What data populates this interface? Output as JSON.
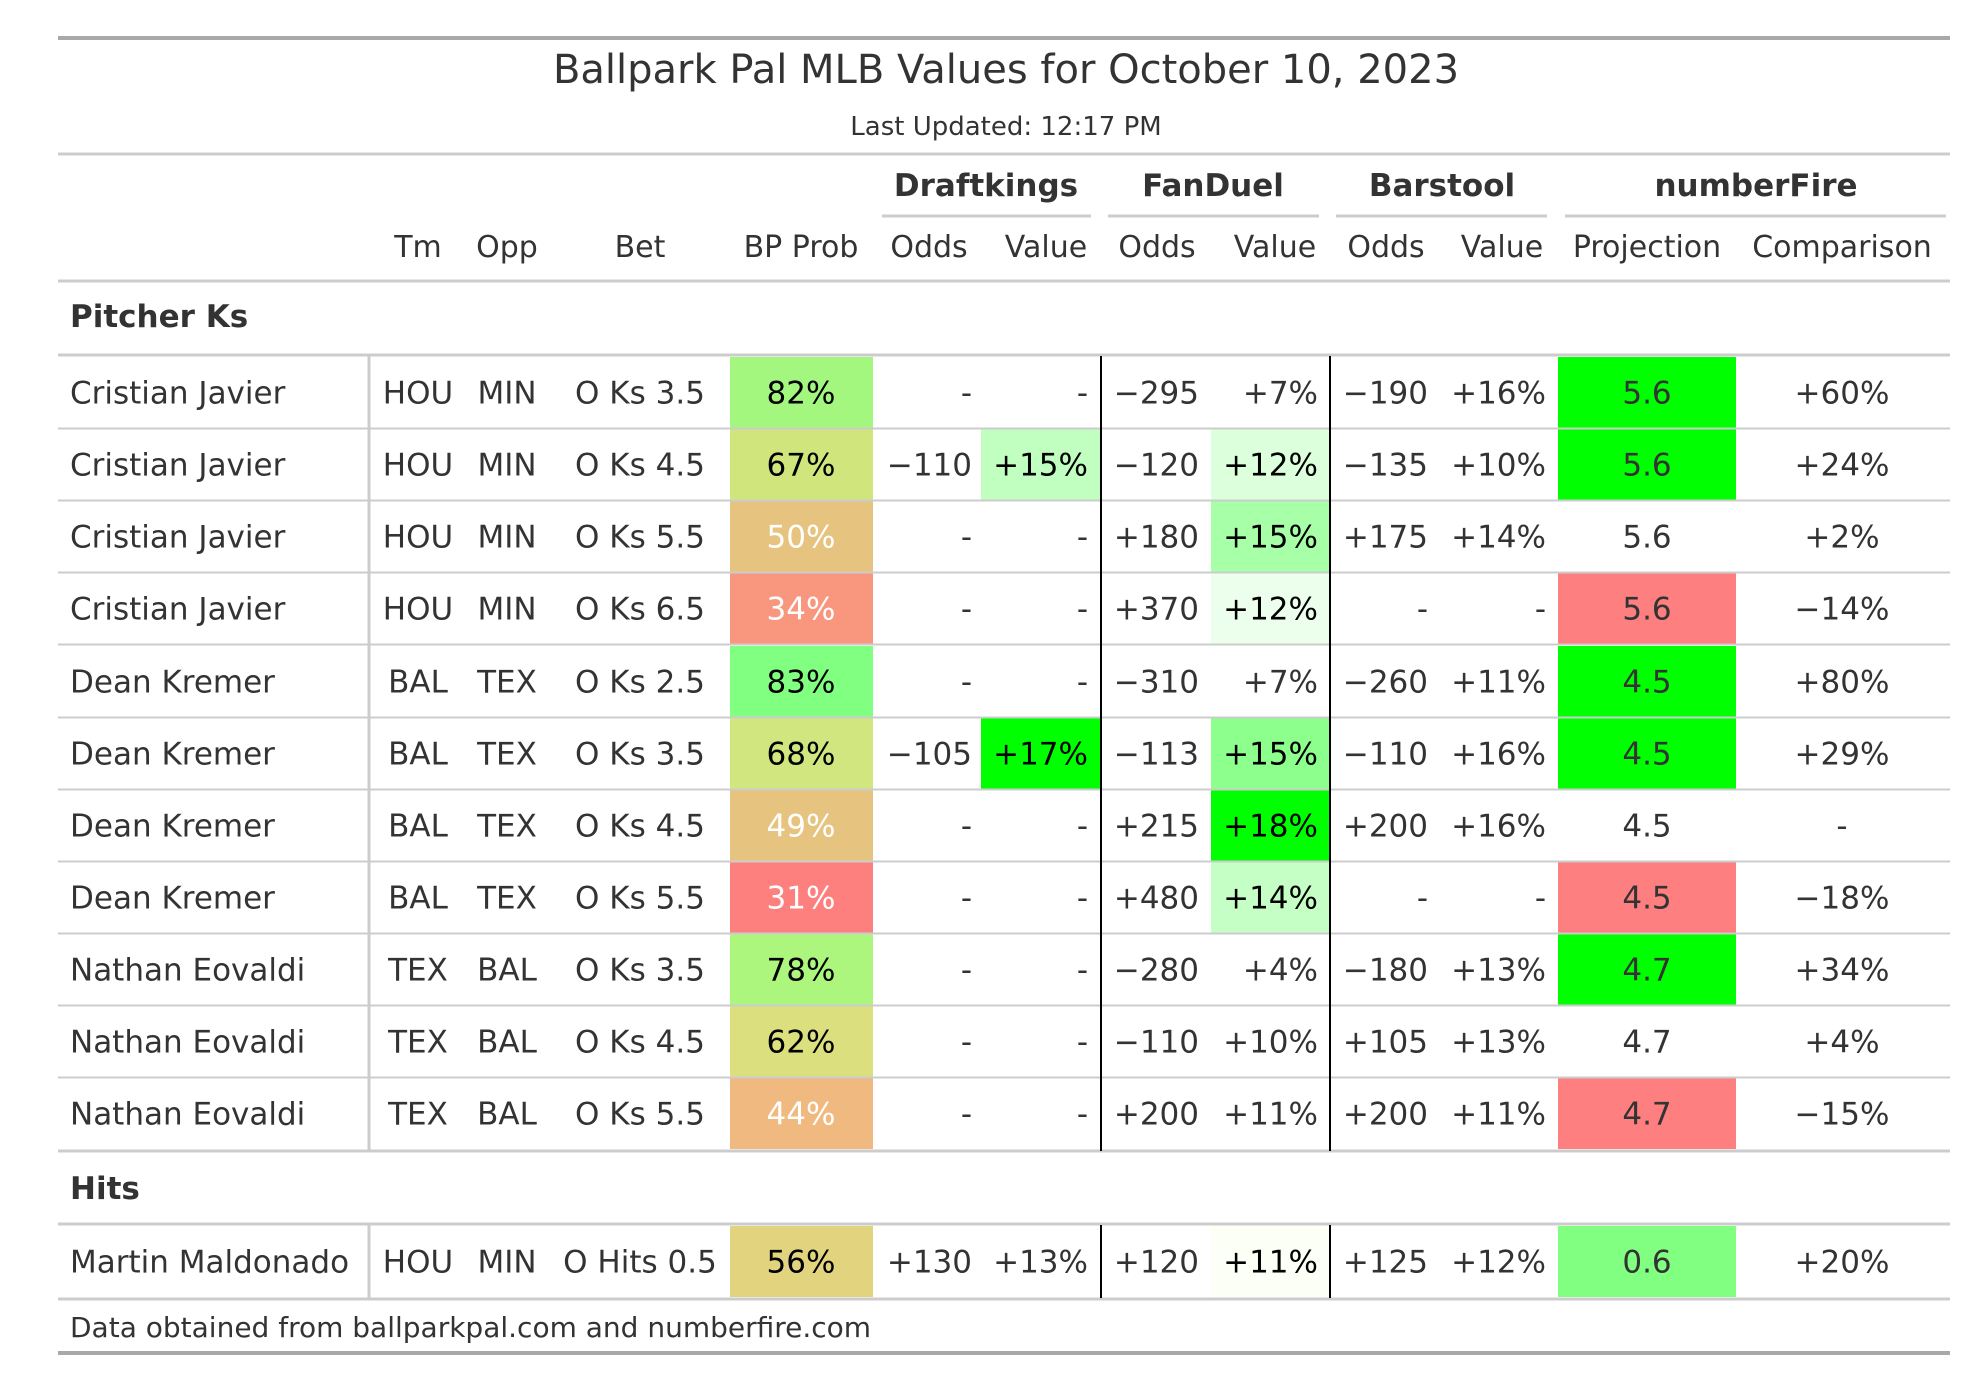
{
  "title": "Ballpark Pal MLB Values for October 10, 2023",
  "subtitle": "Last Updated: 12:17 PM",
  "source_note": "Data obtained from ballparkpal.com and numberfire.com",
  "groups": [
    "Draftkings",
    "FanDuel",
    "Barstool",
    "numberFire"
  ],
  "columns": [
    "",
    "Tm",
    "Opp",
    "Bet",
    "BP Prob",
    "Odds",
    "Value",
    "Odds",
    "Value",
    "Odds",
    "Value",
    "Projection",
    "Comparison"
  ],
  "chart_data": {
    "type": "table",
    "title": "Ballpark Pal MLB Values for October 10, 2023",
    "sections": [
      {
        "name": "Pitcher Ks",
        "rows": [
          {
            "player": "Cristian Javier",
            "tm": "HOU",
            "opp": "MIN",
            "bet": "O Ks 3.5",
            "bp_prob": "82%",
            "dk_odds": "-",
            "dk_value": "-",
            "fd_odds": "−295",
            "fd_value": "+7%",
            "bs_odds": "−190",
            "bs_value": "+16%",
            "projection": "5.6",
            "comparison": "+60%"
          },
          {
            "player": "Cristian Javier",
            "tm": "HOU",
            "opp": "MIN",
            "bet": "O Ks 4.5",
            "bp_prob": "67%",
            "dk_odds": "−110",
            "dk_value": "+15%",
            "fd_odds": "−120",
            "fd_value": "+12%",
            "bs_odds": "−135",
            "bs_value": "+10%",
            "projection": "5.6",
            "comparison": "+24%"
          },
          {
            "player": "Cristian Javier",
            "tm": "HOU",
            "opp": "MIN",
            "bet": "O Ks 5.5",
            "bp_prob": "50%",
            "dk_odds": "-",
            "dk_value": "-",
            "fd_odds": "+180",
            "fd_value": "+15%",
            "bs_odds": "+175",
            "bs_value": "+14%",
            "projection": "5.6",
            "comparison": "+2%"
          },
          {
            "player": "Cristian Javier",
            "tm": "HOU",
            "opp": "MIN",
            "bet": "O Ks 6.5",
            "bp_prob": "34%",
            "dk_odds": "-",
            "dk_value": "-",
            "fd_odds": "+370",
            "fd_value": "+12%",
            "bs_odds": "-",
            "bs_value": "-",
            "projection": "5.6",
            "comparison": "−14%"
          },
          {
            "player": "Dean Kremer",
            "tm": "BAL",
            "opp": "TEX",
            "bet": "O Ks 2.5",
            "bp_prob": "83%",
            "dk_odds": "-",
            "dk_value": "-",
            "fd_odds": "−310",
            "fd_value": "+7%",
            "bs_odds": "−260",
            "bs_value": "+11%",
            "projection": "4.5",
            "comparison": "+80%"
          },
          {
            "player": "Dean Kremer",
            "tm": "BAL",
            "opp": "TEX",
            "bet": "O Ks 3.5",
            "bp_prob": "68%",
            "dk_odds": "−105",
            "dk_value": "+17%",
            "fd_odds": "−113",
            "fd_value": "+15%",
            "bs_odds": "−110",
            "bs_value": "+16%",
            "projection": "4.5",
            "comparison": "+29%"
          },
          {
            "player": "Dean Kremer",
            "tm": "BAL",
            "opp": "TEX",
            "bet": "O Ks 4.5",
            "bp_prob": "49%",
            "dk_odds": "-",
            "dk_value": "-",
            "fd_odds": "+215",
            "fd_value": "+18%",
            "bs_odds": "+200",
            "bs_value": "+16%",
            "projection": "4.5",
            "comparison": "-"
          },
          {
            "player": "Dean Kremer",
            "tm": "BAL",
            "opp": "TEX",
            "bet": "O Ks 5.5",
            "bp_prob": "31%",
            "dk_odds": "-",
            "dk_value": "-",
            "fd_odds": "+480",
            "fd_value": "+14%",
            "bs_odds": "-",
            "bs_value": "-",
            "projection": "4.5",
            "comparison": "−18%"
          },
          {
            "player": "Nathan Eovaldi",
            "tm": "TEX",
            "opp": "BAL",
            "bet": "O Ks 3.5",
            "bp_prob": "78%",
            "dk_odds": "-",
            "dk_value": "-",
            "fd_odds": "−280",
            "fd_value": "+4%",
            "bs_odds": "−180",
            "bs_value": "+13%",
            "projection": "4.7",
            "comparison": "+34%"
          },
          {
            "player": "Nathan Eovaldi",
            "tm": "TEX",
            "opp": "BAL",
            "bet": "O Ks 4.5",
            "bp_prob": "62%",
            "dk_odds": "-",
            "dk_value": "-",
            "fd_odds": "−110",
            "fd_value": "+10%",
            "bs_odds": "+105",
            "bs_value": "+13%",
            "projection": "4.7",
            "comparison": "+4%"
          },
          {
            "player": "Nathan Eovaldi",
            "tm": "TEX",
            "opp": "BAL",
            "bet": "O Ks 5.5",
            "bp_prob": "44%",
            "dk_odds": "-",
            "dk_value": "-",
            "fd_odds": "+200",
            "fd_value": "+11%",
            "bs_odds": "+200",
            "bs_value": "+11%",
            "projection": "4.7",
            "comparison": "−15%"
          }
        ]
      },
      {
        "name": "Hits",
        "rows": [
          {
            "player": "Martin Maldonado",
            "tm": "HOU",
            "opp": "MIN",
            "bet": "O Hits 0.5",
            "bp_prob": "56%",
            "dk_odds": "+130",
            "dk_value": "+13%",
            "fd_odds": "+120",
            "fd_value": "+11%",
            "bs_odds": "+125",
            "bs_value": "+12%",
            "projection": "0.6",
            "comparison": "+20%"
          }
        ]
      }
    ]
  },
  "colors": {
    "text": "#333333",
    "rule": "#cccccc",
    "frame": "#a9a9a9",
    "bp_prob": [
      "#a3f77f",
      "#d1e57d",
      "#e6c47f",
      "#f9977e",
      "#80ff80",
      "#d1e67e",
      "#e6c47f",
      "#fd807e",
      "#acf67e",
      "#dbdf7e",
      "#f0b97f",
      "#e2d47f"
    ],
    "bp_prob_light_text": [
      "50%",
      "34%",
      "49%",
      "31%",
      "44%"
    ],
    "dk_value": {
      "1": "#c1ffc1",
      "5": "#00ff00"
    },
    "fd_value": {
      "1": "#dcffdc",
      "2": "#a7ffa7",
      "3": "#ecffec",
      "5": "#8dff8d",
      "6": "#00ff00",
      "7": "#c6ffc6",
      "11": "#fbfff6"
    },
    "projection": {
      "0": "#00ff00",
      "1": "#00ff00",
      "3": "#fe7f7f",
      "4": "#00ff00",
      "5": "#00ff00",
      "7": "#fe7f7f",
      "8": "#00ff00",
      "10": "#fe7f7f",
      "11": "#80ff80"
    }
  }
}
